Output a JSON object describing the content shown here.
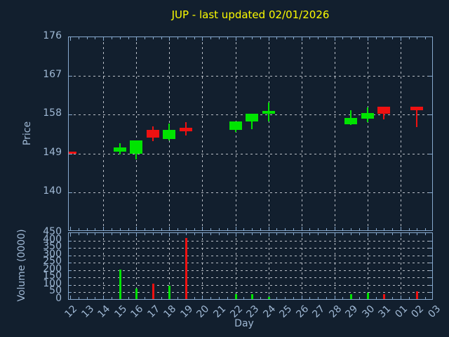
{
  "title": "JUP - last updated 02/01/2026",
  "colors": {
    "background": "#121f2e",
    "axis": "#88aacf",
    "tick_text": "#9fb8d4",
    "grid": "#b9bec6",
    "title": "#fcfc00",
    "up": "#00e400",
    "down": "#ee1111"
  },
  "chart_data": {
    "type": "candlestick",
    "x": {
      "label": "Day",
      "categories": [
        "12",
        "13",
        "14",
        "15",
        "16",
        "17",
        "18",
        "19",
        "20",
        "21",
        "22",
        "23",
        "24",
        "25",
        "26",
        "27",
        "28",
        "29",
        "30",
        "31",
        "01",
        "02",
        "03"
      ],
      "grid_categories": [
        "14",
        "16",
        "18",
        "20",
        "22",
        "24",
        "26",
        "28",
        "30",
        "01"
      ]
    },
    "price_panel": {
      "ylabel": "Price",
      "ylim": [
        131,
        176
      ],
      "yticks": [
        176,
        167,
        158,
        149,
        140
      ],
      "grid_yticks": [
        140,
        149,
        158,
        167
      ],
      "candles": [
        {
          "day": "12",
          "open": 149.5,
          "high": 149.5,
          "low": 148.9,
          "close": 148.9
        },
        {
          "day": "15",
          "open": 149.4,
          "high": 151.4,
          "low": 148.8,
          "close": 150.4
        },
        {
          "day": "16",
          "open": 149.0,
          "high": 152.1,
          "low": 147.6,
          "close": 152.0
        },
        {
          "day": "17",
          "open": 154.4,
          "high": 155.3,
          "low": 151.9,
          "close": 152.7
        },
        {
          "day": "18",
          "open": 152.4,
          "high": 156.0,
          "low": 152.0,
          "close": 154.4
        },
        {
          "day": "19",
          "open": 154.9,
          "high": 156.3,
          "low": 153.2,
          "close": 154.2
        },
        {
          "day": "22",
          "open": 154.4,
          "high": 156.4,
          "low": 154.0,
          "close": 156.4
        },
        {
          "day": "23",
          "open": 156.4,
          "high": 158.3,
          "low": 154.6,
          "close": 158.3
        },
        {
          "day": "24",
          "open": 158.2,
          "high": 160.9,
          "low": 156.5,
          "close": 158.9
        },
        {
          "day": "29",
          "open": 155.7,
          "high": 159.0,
          "low": 155.6,
          "close": 157.2
        },
        {
          "day": "30",
          "open": 157.1,
          "high": 159.7,
          "low": 156.3,
          "close": 158.4
        },
        {
          "day": "31",
          "open": 159.8,
          "high": 159.8,
          "low": 157.0,
          "close": 158.3
        },
        {
          "day": "02",
          "open": 159.8,
          "high": 159.8,
          "low": 155.2,
          "close": 159.1
        }
      ]
    },
    "volume_panel": {
      "ylabel": "Volume (0000)",
      "ylim": [
        0,
        450
      ],
      "yticks": [
        450,
        400,
        350,
        300,
        250,
        200,
        150,
        100,
        50,
        0
      ],
      "grid_yticks": [
        50,
        100,
        150,
        200,
        250,
        300,
        350,
        400
      ],
      "bars": [
        {
          "day": "15",
          "value": 205,
          "direction": "up"
        },
        {
          "day": "16",
          "value": 75,
          "direction": "up"
        },
        {
          "day": "17",
          "value": 110,
          "direction": "down"
        },
        {
          "day": "18",
          "value": 95,
          "direction": "up"
        },
        {
          "day": "19",
          "value": 415,
          "direction": "down"
        },
        {
          "day": "22",
          "value": 40,
          "direction": "up"
        },
        {
          "day": "23",
          "value": 40,
          "direction": "up"
        },
        {
          "day": "24",
          "value": 20,
          "direction": "up"
        },
        {
          "day": "29",
          "value": 40,
          "direction": "up"
        },
        {
          "day": "30",
          "value": 47,
          "direction": "up"
        },
        {
          "day": "31",
          "value": 40,
          "direction": "down"
        },
        {
          "day": "02",
          "value": 57,
          "direction": "down"
        }
      ]
    }
  }
}
